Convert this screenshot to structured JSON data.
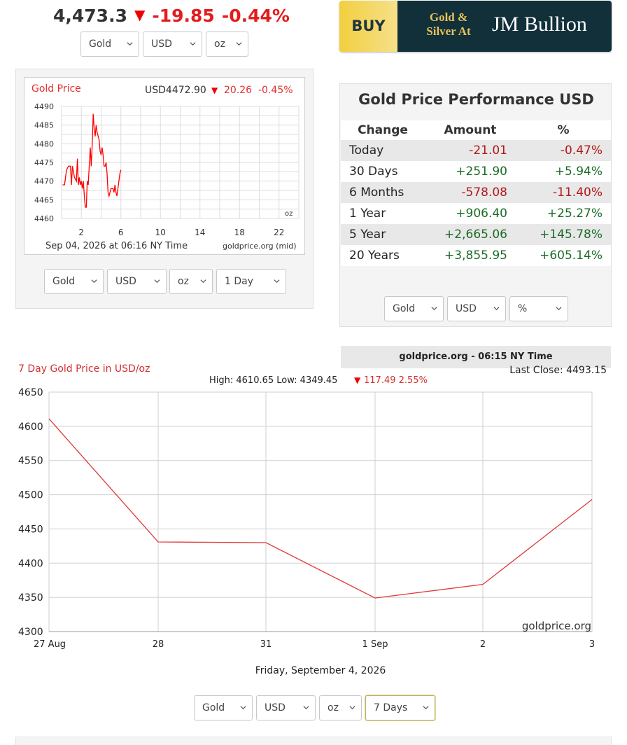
{
  "ticker": {
    "price": "4,473.3",
    "change": "-19.85",
    "percent": "-0.44%",
    "metal": "Gold",
    "currency": "USD",
    "unit": "oz"
  },
  "ad": {
    "buy": "BUY",
    "line1": "Gold &",
    "line2": "Silver At",
    "brand": "JM Bullion"
  },
  "intraday": {
    "title": "Gold Price",
    "quote": "USD4472.90",
    "change": "20.26",
    "percent": "-0.45%",
    "unit_label": "oz",
    "timestamp": "Sep 04, 2026 at 06:16 NY Time",
    "source": "goldprice.org (mid)",
    "colors": {
      "line": "#ff0000",
      "title": "#e03030"
    },
    "chart_data": {
      "type": "line",
      "xlabel": "",
      "ylabel": "",
      "x_ticks": [
        "2",
        "6",
        "10",
        "14",
        "18",
        "22"
      ],
      "y_ticks": [
        "4460",
        "4465",
        "4470",
        "4475",
        "4480",
        "4485",
        "4490"
      ],
      "xlim": [
        0,
        24
      ],
      "ylim": [
        4460,
        4490
      ],
      "grid": true,
      "series": [
        {
          "x": [
            0.1,
            0.3,
            0.5,
            0.7,
            0.9,
            1.0,
            1.1,
            1.3,
            1.5,
            1.6,
            1.7,
            1.8,
            1.9,
            2.0,
            2.1,
            2.2,
            2.3,
            2.4,
            2.5,
            2.6,
            2.7,
            2.8,
            2.9,
            3.0,
            3.1,
            3.2,
            3.3,
            3.4,
            3.5,
            3.6,
            3.7,
            3.8,
            3.9,
            4.0,
            4.1,
            4.2,
            4.3,
            4.4,
            4.5,
            4.6,
            4.7,
            4.8,
            4.9,
            5.0,
            5.1,
            5.2,
            5.3,
            5.4,
            5.5,
            5.6,
            5.7,
            5.8,
            5.9,
            6.0
          ],
          "y": [
            4469,
            4469,
            4473,
            4474,
            4474,
            4469,
            4474,
            4471,
            4470,
            4476,
            4469,
            4471,
            4469,
            4470,
            4468,
            4470,
            4466,
            4463,
            4463,
            4470,
            4469,
            4474,
            4479,
            4474,
            4480,
            4488,
            4484,
            4482,
            4485,
            4483,
            4482,
            4481,
            4478,
            4477,
            4479,
            4477,
            4474,
            4474,
            4475,
            4472,
            4467,
            4466,
            4467,
            4468,
            4468,
            4468,
            4467,
            4469,
            4467,
            4466,
            4468,
            4470,
            4472,
            4473
          ]
        }
      ]
    }
  },
  "intraday_controls": {
    "metal": "Gold",
    "currency": "USD",
    "unit": "oz",
    "range": "1 Day"
  },
  "performance": {
    "title": "Gold Price Performance USD",
    "headers": [
      "Change",
      "Amount",
      "%"
    ],
    "rows": [
      {
        "label": "Today",
        "amount": "-21.01",
        "percent": "-0.47%",
        "sign": "neg"
      },
      {
        "label": "30 Days",
        "amount": "+251.90",
        "percent": "+5.94%",
        "sign": "pos"
      },
      {
        "label": "6 Months",
        "amount": "-578.08",
        "percent": "-11.40%",
        "sign": "neg"
      },
      {
        "label": "1 Year",
        "amount": "+906.40",
        "percent": "+25.27%",
        "sign": "pos"
      },
      {
        "label": "5 Year",
        "amount": "+2,665.06",
        "percent": "+145.78%",
        "sign": "pos"
      },
      {
        "label": "20 Years",
        "amount": "+3,855.95",
        "percent": "+605.14%",
        "sign": "pos"
      }
    ],
    "footer": "goldprice.org - 06:15 NY Time",
    "controls": {
      "metal": "Gold",
      "currency": "USD",
      "unit": "%"
    }
  },
  "weekly": {
    "title": "7 Day Gold Price in USD/oz",
    "last_close": "Last Close: 4493.15",
    "stats_prefix": "High: 4610.65 Low: 4349.45",
    "stats_change": "117.49 2.55%",
    "watermark": "goldprice.org",
    "date_caption": "Friday, September 4, 2026",
    "colors": {
      "line": "#e03a3a",
      "title": "#d32f2f"
    },
    "chart_data": {
      "type": "line",
      "xlabel": "",
      "ylabel": "",
      "categories": [
        "27 Aug",
        "28",
        "31",
        "1 Sep",
        "2",
        "3"
      ],
      "y_ticks": [
        4300,
        4350,
        4400,
        4450,
        4500,
        4550,
        4600,
        4650
      ],
      "ylim": [
        4300,
        4650
      ],
      "grid": true,
      "series": [
        {
          "values": [
            4611,
            4431,
            4430,
            4349,
            4369,
            4493
          ]
        }
      ]
    }
  },
  "weekly_controls": {
    "metal": "Gold",
    "currency": "USD",
    "unit": "oz",
    "range": "7 Days"
  }
}
